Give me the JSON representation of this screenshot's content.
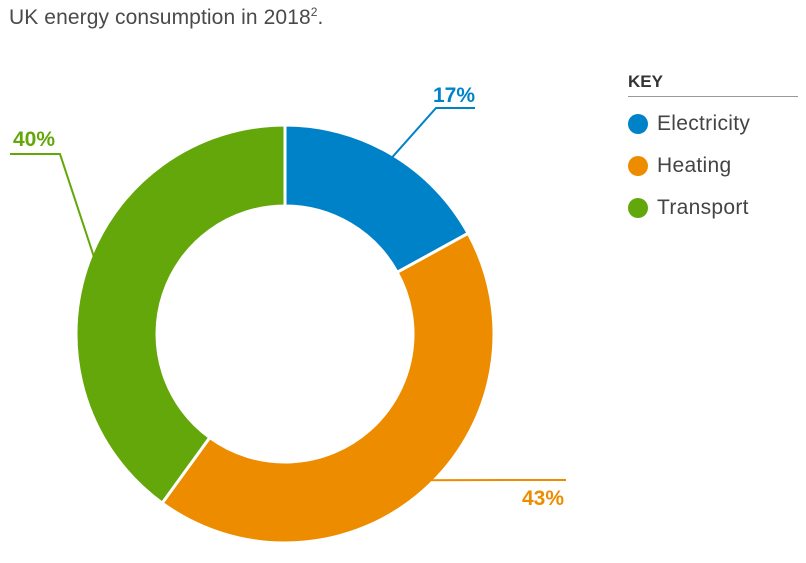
{
  "title": {
    "text": "UK energy consumption in 2018",
    "superscript": "2",
    "suffix": "."
  },
  "chart_data": {
    "type": "pie",
    "variant": "donut",
    "title": "UK energy consumption in 2018",
    "legend_title": "KEY",
    "legend_position": "right",
    "slices": [
      {
        "name": "Electricity",
        "value": 17,
        "label": "17%",
        "color": "#0082c8"
      },
      {
        "name": "Heating",
        "value": 43,
        "label": "43%",
        "color": "#ee8c00"
      },
      {
        "name": "Transport",
        "value": 40,
        "label": "40%",
        "color": "#63a70a"
      }
    ],
    "start_angle_deg": 0,
    "direction": "clockwise",
    "unit": "%"
  }
}
